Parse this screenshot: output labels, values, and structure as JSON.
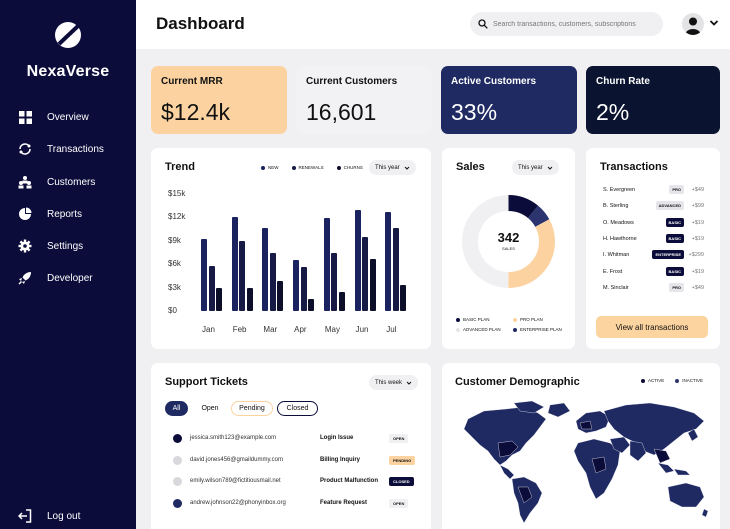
{
  "brand": {
    "name": "NexaVerse",
    "logo_icon": "leaf-circle-logo"
  },
  "sidebar": {
    "items": [
      {
        "label": "Overview",
        "icon": "grid-icon"
      },
      {
        "label": "Transactions",
        "icon": "refresh-icon"
      },
      {
        "label": "Customers",
        "icon": "users-icon"
      },
      {
        "label": "Reports",
        "icon": "pie-icon"
      },
      {
        "label": "Settings",
        "icon": "gear-icon"
      },
      {
        "label": "Developer",
        "icon": "rocket-icon"
      }
    ],
    "logout_label": "Log out"
  },
  "header": {
    "title": "Dashboard",
    "search_placeholder": "Search transactions, customers, subscriptions"
  },
  "stats": [
    {
      "label": "Current MRR",
      "value": "$12.4k",
      "bg": "#fcd3a0",
      "fg": "#111111"
    },
    {
      "label": "Current Customers",
      "value": "16,601",
      "bg": "#f2f2f4",
      "fg": "#111111"
    },
    {
      "label": "Active Customers",
      "value": "33%",
      "bg": "#1f2a63",
      "fg": "#ffffff"
    },
    {
      "label": "Churn Rate",
      "value": "2%",
      "bg": "#0a1430",
      "fg": "#ffffff"
    }
  ],
  "trend": {
    "title": "Trend",
    "period": "This year",
    "legend": [
      "NEW",
      "RENEWALS",
      "CHURNS"
    ]
  },
  "chart_data": {
    "type": "bar",
    "categories": [
      "Jan",
      "Feb",
      "Mar",
      "Apr",
      "May",
      "Jun",
      "Jul"
    ],
    "series": [
      {
        "name": "NEW",
        "values": [
          9200,
          12100,
          10700,
          6500,
          11900,
          13000,
          12700
        ]
      },
      {
        "name": "RENEWALS",
        "values": [
          5800,
          9000,
          7500,
          5700,
          7400,
          9500,
          10700
        ]
      },
      {
        "name": "CHURNS",
        "values": [
          3000,
          3000,
          3900,
          1600,
          2500,
          6700,
          3300
        ]
      }
    ],
    "yticks": [
      "$15k",
      "$12k",
      "$9k",
      "$6k",
      "$3k",
      "$0"
    ],
    "ylim": [
      0,
      15000
    ],
    "colors": [
      "#1b2260",
      "#161a45",
      "#0d0f2a"
    ],
    "grid": false,
    "legend": "top-right"
  },
  "sales": {
    "title": "Sales",
    "period": "This year",
    "center_value": "342",
    "center_label": "SALES",
    "legend": [
      {
        "label": "BASIC PLAN",
        "color": "#0b0c3a"
      },
      {
        "label": "PRO PLAN",
        "color": "#fcd3a0"
      },
      {
        "label": "ADVANCED PLAN",
        "color": "#f0f0f2"
      },
      {
        "label": "ENTERPRISE PLAN",
        "color": "#1f2a63"
      }
    ],
    "donut": [
      {
        "label": "BASIC PLAN",
        "value": 0.11,
        "color": "#0b0c3a"
      },
      {
        "label": "ENTERPRISE PLAN",
        "value": 0.06,
        "color": "#2c3470"
      },
      {
        "label": "PRO PLAN",
        "value": 0.33,
        "color": "#fcd3a0"
      },
      {
        "label": "ADVANCED PLAN",
        "value": 0.5,
        "color": "#f0f0f2"
      }
    ]
  },
  "transactions": {
    "title": "Transactions",
    "rows": [
      {
        "name": "S. Evergreen",
        "plan": "PRO",
        "amount": "+$49",
        "dark": false
      },
      {
        "name": "B. Sterling",
        "plan": "ADVANCED",
        "amount": "+$99",
        "dark": false
      },
      {
        "name": "O. Meadows",
        "plan": "BASIC",
        "amount": "+$19",
        "dark": true
      },
      {
        "name": "H. Hawthorne",
        "plan": "BASIC",
        "amount": "+$19",
        "dark": true
      },
      {
        "name": "I. Whitman",
        "plan": "ENTERPRISE",
        "amount": "+$299",
        "dark": true
      },
      {
        "name": "E. Frost",
        "plan": "BASIC",
        "amount": "+$19",
        "dark": true
      },
      {
        "name": "M. Sinclair",
        "plan": "PRO",
        "amount": "+$49",
        "dark": false
      }
    ],
    "view_all_label": "View all transactions"
  },
  "tickets": {
    "title": "Support Tickets",
    "period": "This week",
    "filters": [
      "All",
      "Open",
      "Pending",
      "Closed"
    ],
    "rows": [
      {
        "email": "jessica.smith123@example.com",
        "subject": "Login Issue",
        "status": "OPEN",
        "dot": "#0b0c3a",
        "status_bg": "#f0f0f2",
        "status_fg": "#111111"
      },
      {
        "email": "david.jones456@gmaildummy.com",
        "subject": "Billing Inquiry",
        "status": "PENDING",
        "dot": "#d8d8dc",
        "status_bg": "#fcd3a0",
        "status_fg": "#111111"
      },
      {
        "email": "emily.wilson789@fictitiousmail.net",
        "subject": "Product Malfunction",
        "status": "CLOSED",
        "dot": "#d8d8dc",
        "status_bg": "#0b0c3a",
        "status_fg": "#ffffff"
      },
      {
        "email": "andrew.johnson22@phonyinbox.org",
        "subject": "Feature Request",
        "status": "OPEN",
        "dot": "#1f2a63",
        "status_bg": "#f0f0f2",
        "status_fg": "#111111"
      }
    ]
  },
  "demographic": {
    "title": "Customer Demographic",
    "legend": [
      {
        "label": "ACTIVE",
        "color": "#0b0c3a"
      },
      {
        "label": "INACTIVE",
        "color": "#2c3470"
      }
    ],
    "map_icon": "world-map"
  }
}
